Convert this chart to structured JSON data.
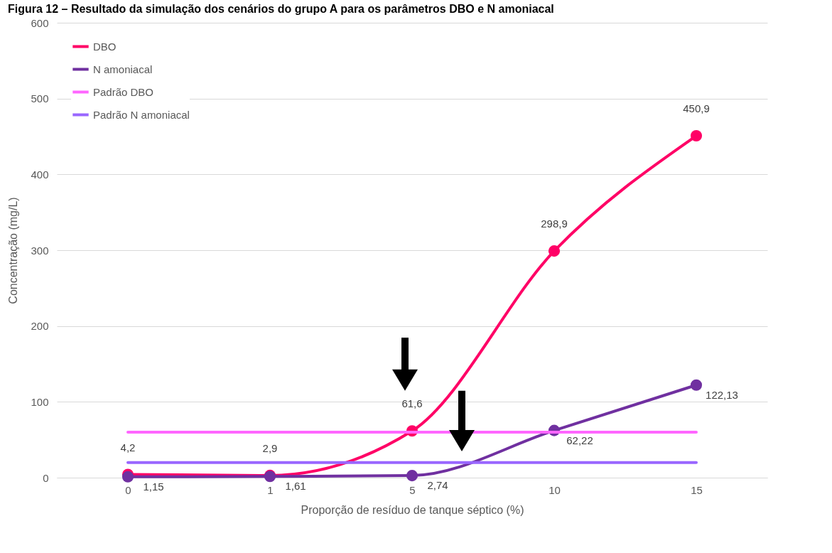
{
  "chart_data": {
    "type": "line",
    "title": "Figura 12 – Resultado da simulação dos cenários do grupo A para os parâmetros DBO e N amoniacal",
    "xlabel": "Proporção de resíduo de tanque séptico (%)",
    "ylabel": "Concentração (mg/L)",
    "categories": [
      "0",
      "1",
      "5",
      "10",
      "15"
    ],
    "series": [
      {
        "name": "DBO",
        "color": "#ff0066",
        "marker": "circle",
        "values": [
          4.2,
          2.9,
          61.6,
          298.9,
          450.9
        ],
        "value_labels": [
          "4,2",
          "2,9",
          "61,6",
          "298,9",
          "450,9"
        ]
      },
      {
        "name": "N amoniacal",
        "color": "#7030a0",
        "marker": "circle",
        "values": [
          1.15,
          1.61,
          2.74,
          62.22,
          122.13
        ],
        "value_labels": [
          "1,15",
          "1,61",
          "2,74",
          "62,22",
          "122,13"
        ]
      },
      {
        "name": "Padrão DBO",
        "color": "#ff66ff",
        "marker": "none",
        "values": [
          60,
          60,
          60,
          60,
          60
        ]
      },
      {
        "name": "Padrão N amoniacal",
        "color": "#9966ff",
        "marker": "none",
        "values": [
          20,
          20,
          20,
          20,
          20
        ]
      }
    ],
    "ylim": [
      0,
      600
    ],
    "yticks": [
      0,
      100,
      200,
      300,
      400,
      500,
      600
    ],
    "grid": "y",
    "legend": "top left"
  }
}
